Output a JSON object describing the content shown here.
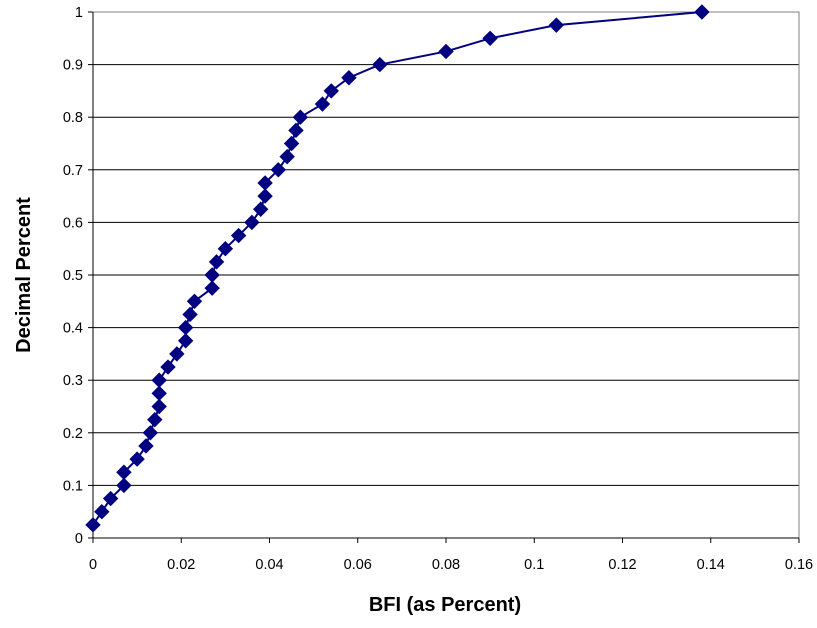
{
  "chart_data": {
    "type": "line",
    "title": "",
    "xlabel": "BFI (as Percent)",
    "ylabel": "Decimal Percent",
    "xlim": [
      0,
      0.16
    ],
    "ylim": [
      0,
      1
    ],
    "x_ticks": [
      "0",
      "0.02",
      "0.04",
      "0.06",
      "0.08",
      "0.1",
      "0.12",
      "0.14",
      "0.16"
    ],
    "y_ticks": [
      "0",
      "0.1",
      "0.2",
      "0.3",
      "0.4",
      "0.5",
      "0.6",
      "0.7",
      "0.8",
      "0.9",
      "1"
    ],
    "grid": "horizontal",
    "legend": "none",
    "marker": "diamond",
    "series": [
      {
        "color": "#000080",
        "points": [
          [
            0.0,
            0.025
          ],
          [
            0.002,
            0.05
          ],
          [
            0.004,
            0.075
          ],
          [
            0.007,
            0.1
          ],
          [
            0.007,
            0.125
          ],
          [
            0.01,
            0.15
          ],
          [
            0.012,
            0.175
          ],
          [
            0.013,
            0.2
          ],
          [
            0.014,
            0.225
          ],
          [
            0.015,
            0.25
          ],
          [
            0.015,
            0.275
          ],
          [
            0.015,
            0.3
          ],
          [
            0.017,
            0.325
          ],
          [
            0.019,
            0.35
          ],
          [
            0.021,
            0.375
          ],
          [
            0.021,
            0.4
          ],
          [
            0.022,
            0.425
          ],
          [
            0.023,
            0.45
          ],
          [
            0.027,
            0.475
          ],
          [
            0.027,
            0.5
          ],
          [
            0.028,
            0.525
          ],
          [
            0.03,
            0.55
          ],
          [
            0.033,
            0.575
          ],
          [
            0.036,
            0.6
          ],
          [
            0.038,
            0.625
          ],
          [
            0.039,
            0.65
          ],
          [
            0.039,
            0.675
          ],
          [
            0.042,
            0.7
          ],
          [
            0.044,
            0.725
          ],
          [
            0.045,
            0.75
          ],
          [
            0.046,
            0.775
          ],
          [
            0.047,
            0.8
          ],
          [
            0.052,
            0.825
          ],
          [
            0.054,
            0.85
          ],
          [
            0.058,
            0.875
          ],
          [
            0.065,
            0.9
          ],
          [
            0.08,
            0.925
          ],
          [
            0.09,
            0.95
          ],
          [
            0.105,
            0.975
          ],
          [
            0.138,
            1.0
          ]
        ]
      }
    ]
  }
}
